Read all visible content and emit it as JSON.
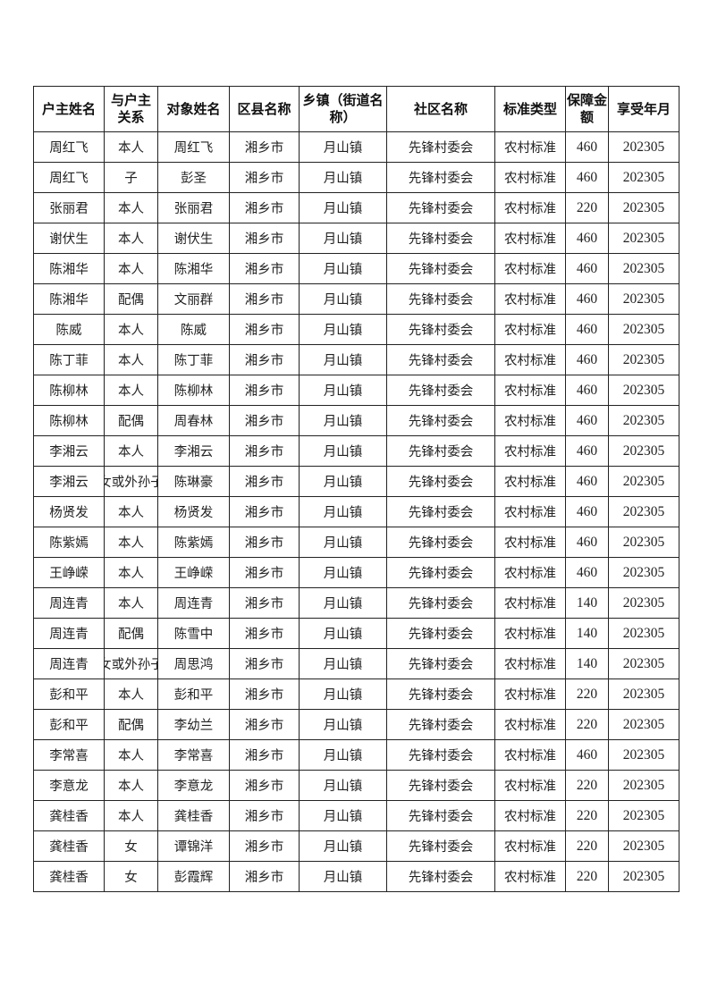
{
  "headers": [
    "户主姓名",
    "与户主关系",
    "对象姓名",
    "区县名称",
    "乡镇（街道名称）",
    "社区名称",
    "标准类型",
    "保障金额",
    "享受年月"
  ],
  "rows": [
    [
      "周红飞",
      "本人",
      "周红飞",
      "湘乡市",
      "月山镇",
      "先锋村委会",
      "农村标准",
      "460",
      "202305"
    ],
    [
      "周红飞",
      "子",
      "彭圣",
      "湘乡市",
      "月山镇",
      "先锋村委会",
      "农村标准",
      "460",
      "202305"
    ],
    [
      "张丽君",
      "本人",
      "张丽君",
      "湘乡市",
      "月山镇",
      "先锋村委会",
      "农村标准",
      "220",
      "202305"
    ],
    [
      "谢伏生",
      "本人",
      "谢伏生",
      "湘乡市",
      "月山镇",
      "先锋村委会",
      "农村标准",
      "460",
      "202305"
    ],
    [
      "陈湘华",
      "本人",
      "陈湘华",
      "湘乡市",
      "月山镇",
      "先锋村委会",
      "农村标准",
      "460",
      "202305"
    ],
    [
      "陈湘华",
      "配偶",
      "文丽群",
      "湘乡市",
      "月山镇",
      "先锋村委会",
      "农村标准",
      "460",
      "202305"
    ],
    [
      "陈威",
      "本人",
      "陈威",
      "湘乡市",
      "月山镇",
      "先锋村委会",
      "农村标准",
      "460",
      "202305"
    ],
    [
      "陈丁菲",
      "本人",
      "陈丁菲",
      "湘乡市",
      "月山镇",
      "先锋村委会",
      "农村标准",
      "460",
      "202305"
    ],
    [
      "陈柳林",
      "本人",
      "陈柳林",
      "湘乡市",
      "月山镇",
      "先锋村委会",
      "农村标准",
      "460",
      "202305"
    ],
    [
      "陈柳林",
      "配偶",
      "周春林",
      "湘乡市",
      "月山镇",
      "先锋村委会",
      "农村标准",
      "460",
      "202305"
    ],
    [
      "李湘云",
      "本人",
      "李湘云",
      "湘乡市",
      "月山镇",
      "先锋村委会",
      "农村标准",
      "460",
      "202305"
    ],
    [
      "李湘云",
      "子女或外孙子女",
      "陈琳豪",
      "湘乡市",
      "月山镇",
      "先锋村委会",
      "农村标准",
      "460",
      "202305"
    ],
    [
      "杨贤发",
      "本人",
      "杨贤发",
      "湘乡市",
      "月山镇",
      "先锋村委会",
      "农村标准",
      "460",
      "202305"
    ],
    [
      "陈紫嫣",
      "本人",
      "陈紫嫣",
      "湘乡市",
      "月山镇",
      "先锋村委会",
      "农村标准",
      "460",
      "202305"
    ],
    [
      "王峥嵘",
      "本人",
      "王峥嵘",
      "湘乡市",
      "月山镇",
      "先锋村委会",
      "农村标准",
      "460",
      "202305"
    ],
    [
      "周连青",
      "本人",
      "周连青",
      "湘乡市",
      "月山镇",
      "先锋村委会",
      "农村标准",
      "140",
      "202305"
    ],
    [
      "周连青",
      "配偶",
      "陈雪中",
      "湘乡市",
      "月山镇",
      "先锋村委会",
      "农村标准",
      "140",
      "202305"
    ],
    [
      "周连青",
      "子女或外孙子女",
      "周思鸿",
      "湘乡市",
      "月山镇",
      "先锋村委会",
      "农村标准",
      "140",
      "202305"
    ],
    [
      "彭和平",
      "本人",
      "彭和平",
      "湘乡市",
      "月山镇",
      "先锋村委会",
      "农村标准",
      "220",
      "202305"
    ],
    [
      "彭和平",
      "配偶",
      "李幼兰",
      "湘乡市",
      "月山镇",
      "先锋村委会",
      "农村标准",
      "220",
      "202305"
    ],
    [
      "李常喜",
      "本人",
      "李常喜",
      "湘乡市",
      "月山镇",
      "先锋村委会",
      "农村标准",
      "460",
      "202305"
    ],
    [
      "李意龙",
      "本人",
      "李意龙",
      "湘乡市",
      "月山镇",
      "先锋村委会",
      "农村标准",
      "220",
      "202305"
    ],
    [
      "龚桂香",
      "本人",
      "龚桂香",
      "湘乡市",
      "月山镇",
      "先锋村委会",
      "农村标准",
      "220",
      "202305"
    ],
    [
      "龚桂香",
      "女",
      "谭锦洋",
      "湘乡市",
      "月山镇",
      "先锋村委会",
      "农村标准",
      "220",
      "202305"
    ],
    [
      "龚桂香",
      "女",
      "彭霞辉",
      "湘乡市",
      "月山镇",
      "先锋村委会",
      "农村标准",
      "220",
      "202305"
    ]
  ]
}
